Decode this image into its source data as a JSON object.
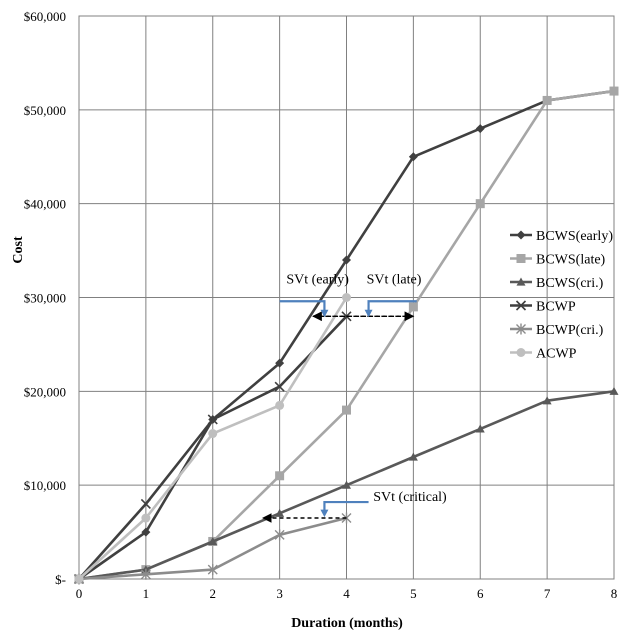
{
  "chart_data": {
    "type": "line",
    "xlabel": "Duration (months)",
    "ylabel": "Cost",
    "xlim": [
      0,
      8
    ],
    "ylim": [
      0,
      60000
    ],
    "x_ticks": [
      "0",
      "1",
      "2",
      "3",
      "4",
      "5",
      "6",
      "7",
      "8"
    ],
    "y_ticks": [
      "$-",
      "$10,000",
      "$20,000",
      "$30,000",
      "$40,000",
      "$50,000",
      "$60,000"
    ],
    "grid": true,
    "legend_position": "right",
    "series": [
      {
        "name": "BCWS(early)",
        "color": "#404040",
        "marker": "diamond",
        "x": [
          0,
          1,
          2,
          3,
          4,
          5,
          6,
          7,
          8
        ],
        "values": [
          0,
          5000,
          17000,
          23000,
          34000,
          45000,
          48000,
          51000,
          52000
        ]
      },
      {
        "name": "BCWS(late)",
        "color": "#a6a6a6",
        "marker": "square",
        "x": [
          0,
          1,
          2,
          3,
          4,
          5,
          6,
          7,
          8
        ],
        "values": [
          0,
          1000,
          4000,
          11000,
          18000,
          29000,
          40000,
          51000,
          52000
        ]
      },
      {
        "name": "BCWS(cri.)",
        "color": "#595959",
        "marker": "triangle",
        "x": [
          0,
          1,
          2,
          3,
          4,
          5,
          6,
          7,
          8
        ],
        "values": [
          0,
          1000,
          4000,
          7000,
          10000,
          13000,
          16000,
          19000,
          20000
        ]
      },
      {
        "name": "BCWP",
        "color": "#3f3f3f",
        "marker": "x",
        "x": [
          0,
          1,
          2,
          3,
          4
        ],
        "values": [
          0,
          8000,
          17000,
          20500,
          28000
        ]
      },
      {
        "name": "BCWP(cri.)",
        "color": "#8c8c8c",
        "marker": "star",
        "x": [
          0,
          1,
          2,
          3,
          4
        ],
        "values": [
          0,
          500,
          1000,
          4700,
          6500
        ]
      },
      {
        "name": "ACWP",
        "color": "#bfbfbf",
        "marker": "circle",
        "x": [
          0,
          1,
          2,
          3,
          4
        ],
        "values": [
          0,
          6500,
          15500,
          18500,
          30000
        ]
      }
    ],
    "annotations": [
      {
        "text": "SVt (early)",
        "arrow_from": [
          3.5,
          28000
        ],
        "arrow_to": [
          5,
          28000
        ],
        "label_at": [
          3.1,
          31500
        ]
      },
      {
        "text": "SVt (late)",
        "arrow_from": [
          5,
          28000
        ],
        "arrow_to": [
          3.5,
          28000
        ],
        "label_at": [
          4.3,
          31500
        ]
      },
      {
        "text": "SVt (critical)",
        "arrow_from": [
          4,
          6500
        ],
        "arrow_to": [
          2.75,
          6500
        ],
        "label_at": [
          4.4,
          8300
        ]
      }
    ]
  }
}
